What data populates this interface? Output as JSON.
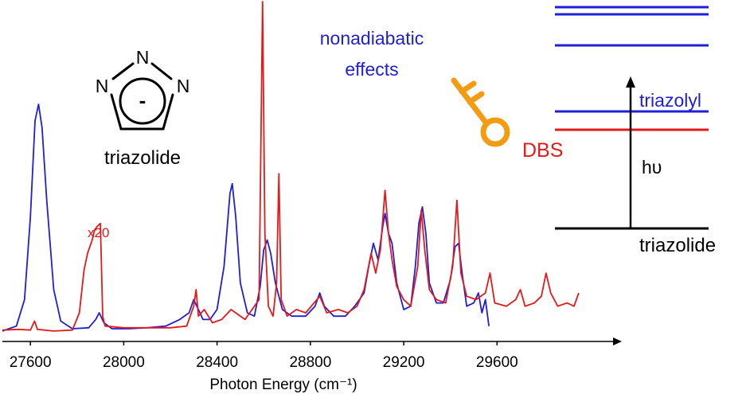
{
  "chart_data": {
    "type": "line",
    "xlabel": "Photon Energy (cm⁻¹)",
    "ylabel": "",
    "xlim": [
      27480,
      30080
    ],
    "ylim": [
      0,
      1.0
    ],
    "grid": false,
    "x_ticks": [
      27600,
      28000,
      28400,
      28800,
      29200,
      29600
    ],
    "series": [
      {
        "color": "#1f1fd9",
        "values": [
          [
            27480,
            0.005
          ],
          [
            27540,
            0.02
          ],
          [
            27575,
            0.1
          ],
          [
            27600,
            0.35
          ],
          [
            27620,
            0.64
          ],
          [
            27635,
            0.69
          ],
          [
            27650,
            0.62
          ],
          [
            27670,
            0.4
          ],
          [
            27700,
            0.13
          ],
          [
            27730,
            0.035
          ],
          [
            27780,
            0.012
          ],
          [
            27850,
            0.015
          ],
          [
            27880,
            0.04
          ],
          [
            27895,
            0.06
          ],
          [
            27915,
            0.03
          ],
          [
            27950,
            0.012
          ],
          [
            28020,
            0.012
          ],
          [
            28100,
            0.015
          ],
          [
            28180,
            0.02
          ],
          [
            28240,
            0.04
          ],
          [
            28280,
            0.06
          ],
          [
            28300,
            0.1
          ],
          [
            28320,
            0.07
          ],
          [
            28340,
            0.04
          ],
          [
            28370,
            0.04
          ],
          [
            28400,
            0.07
          ],
          [
            28430,
            0.2
          ],
          [
            28455,
            0.42
          ],
          [
            28465,
            0.45
          ],
          [
            28480,
            0.35
          ],
          [
            28500,
            0.15
          ],
          [
            28530,
            0.06
          ],
          [
            28560,
            0.05
          ],
          [
            28585,
            0.14
          ],
          [
            28600,
            0.25
          ],
          [
            28615,
            0.28
          ],
          [
            28630,
            0.24
          ],
          [
            28650,
            0.15
          ],
          [
            28680,
            0.07
          ],
          [
            28720,
            0.05
          ],
          [
            28780,
            0.05
          ],
          [
            28820,
            0.08
          ],
          [
            28840,
            0.12
          ],
          [
            28860,
            0.08
          ],
          [
            28900,
            0.05
          ],
          [
            28950,
            0.05
          ],
          [
            28990,
            0.08
          ],
          [
            29030,
            0.12
          ],
          [
            29050,
            0.2
          ],
          [
            29070,
            0.27
          ],
          [
            29090,
            0.22
          ],
          [
            29110,
            0.32
          ],
          [
            29120,
            0.36
          ],
          [
            29135,
            0.3
          ],
          [
            29150,
            0.27
          ],
          [
            29170,
            0.15
          ],
          [
            29200,
            0.07
          ],
          [
            29230,
            0.08
          ],
          [
            29250,
            0.2
          ],
          [
            29265,
            0.33
          ],
          [
            29280,
            0.38
          ],
          [
            29295,
            0.3
          ],
          [
            29310,
            0.15
          ],
          [
            29340,
            0.09
          ],
          [
            29370,
            0.09
          ],
          [
            29400,
            0.16
          ],
          [
            29420,
            0.26
          ],
          [
            29435,
            0.27
          ],
          [
            29450,
            0.18
          ],
          [
            29470,
            0.08
          ],
          [
            29500,
            0.09
          ],
          [
            29520,
            0.12
          ],
          [
            29535,
            0.06
          ],
          [
            29550,
            0.1
          ],
          [
            29565,
            0.02
          ]
        ]
      },
      {
        "color": "#e41a1a",
        "values": [
          [
            27480,
            0.008
          ],
          [
            27550,
            0.01
          ],
          [
            27600,
            0.008
          ],
          [
            27618,
            0.035
          ],
          [
            27630,
            0.01
          ],
          [
            27700,
            0.005
          ],
          [
            27780,
            0.008
          ],
          [
            27810,
            0.06
          ],
          [
            27830,
            0.19
          ],
          [
            27845,
            0.24
          ],
          [
            27855,
            0.26
          ],
          [
            27865,
            0.28
          ],
          [
            27875,
            0.31
          ],
          [
            27885,
            0.32
          ],
          [
            27900,
            0.33
          ],
          [
            27910,
            0.05
          ],
          [
            27920,
            0.02
          ],
          [
            28000,
            0.015
          ],
          [
            28100,
            0.015
          ],
          [
            28200,
            0.015
          ],
          [
            28270,
            0.02
          ],
          [
            28300,
            0.08
          ],
          [
            28310,
            0.13
          ],
          [
            28320,
            0.05
          ],
          [
            28345,
            0.07
          ],
          [
            28380,
            0.03
          ],
          [
            28420,
            0.04
          ],
          [
            28460,
            0.07
          ],
          [
            28520,
            0.04
          ],
          [
            28580,
            0.1
          ],
          [
            28595,
            1.0
          ],
          [
            28605,
            0.3
          ],
          [
            28620,
            0.08
          ],
          [
            28640,
            0.05
          ],
          [
            28655,
            0.15
          ],
          [
            28665,
            0.48
          ],
          [
            28675,
            0.1
          ],
          [
            28700,
            0.05
          ],
          [
            28740,
            0.07
          ],
          [
            28780,
            0.06
          ],
          [
            28840,
            0.11
          ],
          [
            28870,
            0.06
          ],
          [
            28920,
            0.07
          ],
          [
            28960,
            0.06
          ],
          [
            29000,
            0.08
          ],
          [
            29030,
            0.13
          ],
          [
            29060,
            0.24
          ],
          [
            29080,
            0.18
          ],
          [
            29100,
            0.25
          ],
          [
            29120,
            0.43
          ],
          [
            29135,
            0.3
          ],
          [
            29150,
            0.22
          ],
          [
            29170,
            0.14
          ],
          [
            29200,
            0.1
          ],
          [
            29230,
            0.08
          ],
          [
            29260,
            0.2
          ],
          [
            29275,
            0.37
          ],
          [
            29290,
            0.25
          ],
          [
            29310,
            0.13
          ],
          [
            29340,
            0.1
          ],
          [
            29380,
            0.09
          ],
          [
            29410,
            0.2
          ],
          [
            29428,
            0.4
          ],
          [
            29445,
            0.18
          ],
          [
            29470,
            0.11
          ],
          [
            29510,
            0.1
          ],
          [
            29550,
            0.12
          ],
          [
            29570,
            0.18
          ],
          [
            29590,
            0.09
          ],
          [
            29640,
            0.08
          ],
          [
            29680,
            0.1
          ],
          [
            29700,
            0.13
          ],
          [
            29720,
            0.08
          ],
          [
            29760,
            0.09
          ],
          [
            29790,
            0.11
          ],
          [
            29810,
            0.18
          ],
          [
            29830,
            0.12
          ],
          [
            29860,
            0.08
          ],
          [
            29900,
            0.09
          ],
          [
            29930,
            0.08
          ],
          [
            29950,
            0.12
          ]
        ]
      }
    ],
    "annotations": [
      {
        "text": "x20",
        "color": "#e41a1a"
      }
    ]
  },
  "molecule": {
    "name": "triazolide",
    "atom": "N",
    "charge": "-"
  },
  "mechanism": {
    "label_line1": "nonadiabatic",
    "label_line2": "effects",
    "color": "#1f1fd9",
    "key_color": "#f39c12"
  },
  "energy_diagram": {
    "states": [
      {
        "label": "",
        "color": "#1f1fd9"
      },
      {
        "label": "",
        "color": "#1f1fd9"
      },
      {
        "label": "",
        "color": "#1f1fd9"
      },
      {
        "label": "triazolyl",
        "color": "#1f1fd9"
      },
      {
        "label": "DBS",
        "color": "#e41a1a"
      },
      {
        "label": "triazolide",
        "color": "#000000"
      }
    ],
    "excitation_label": "hυ"
  }
}
